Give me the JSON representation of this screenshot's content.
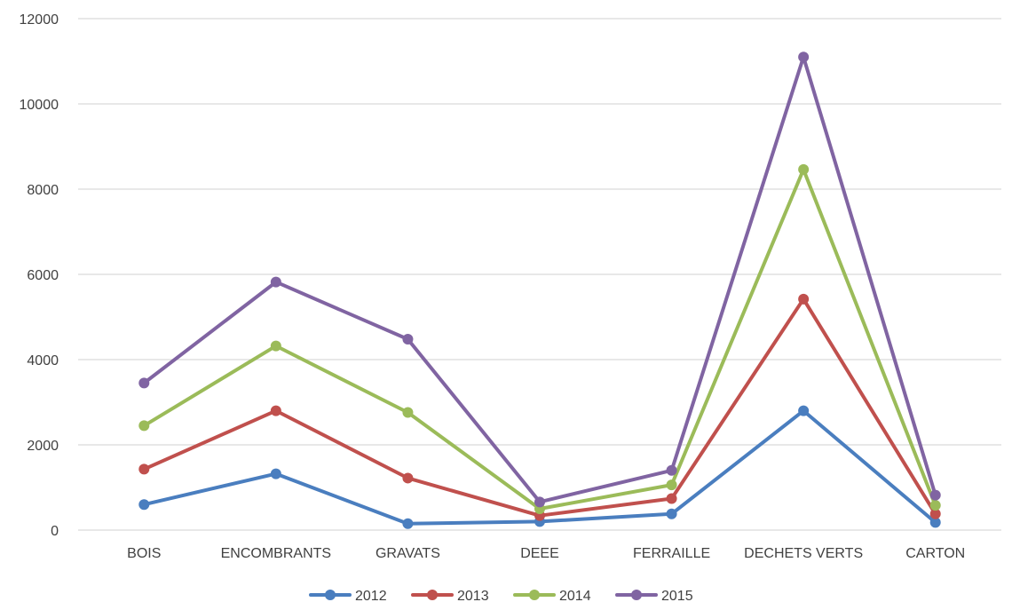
{
  "chart_data": {
    "type": "line",
    "title": "",
    "xlabel": "",
    "ylabel": "",
    "categories": [
      "BOIS",
      "ENCOMBRANTS",
      "GRAVATS",
      "DEEE",
      "FERRAILLE",
      "DECHETS VERTS",
      "CARTON"
    ],
    "ylim": [
      0,
      12000
    ],
    "yticks": [
      "0",
      "2000",
      "4000",
      "6000",
      "8000",
      "10000",
      "12000"
    ],
    "grid": "horizontal",
    "legend_position": "bottom",
    "series": [
      {
        "name": "2012",
        "color": "#4a7ebf",
        "values": [
          600,
          1320,
          150,
          200,
          380,
          2800,
          180
        ]
      },
      {
        "name": "2013",
        "color": "#c0504d",
        "values": [
          1430,
          2800,
          1220,
          340,
          740,
          5420,
          380
        ]
      },
      {
        "name": "2014",
        "color": "#9bbb59",
        "values": [
          2450,
          4320,
          2760,
          500,
          1060,
          8460,
          580
        ]
      },
      {
        "name": "2015",
        "color": "#8064a2",
        "values": [
          3450,
          5820,
          4480,
          660,
          1400,
          11100,
          820
        ]
      }
    ]
  }
}
